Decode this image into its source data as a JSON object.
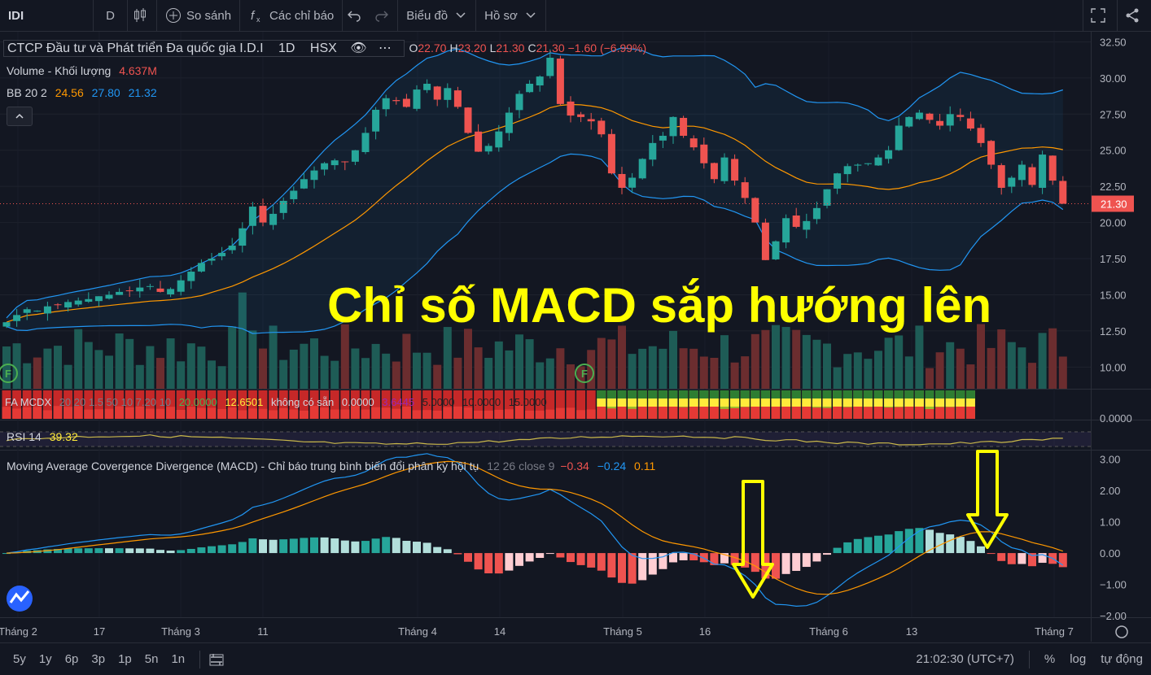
{
  "toolbar": {
    "symbol": "IDI",
    "interval": "D",
    "compare": "So sánh",
    "indicators": "Các chỉ báo",
    "chart_menu": "Biểu đồ",
    "profile_menu": "Hồ sơ"
  },
  "legend": {
    "title": "CTCP Đầu tư và Phát triển Đa quốc gia I.D.I",
    "interval": "1D",
    "exchange": "HSX",
    "ohlc": {
      "o_label": "O",
      "o": "22.70",
      "h_label": "H",
      "h": "23.20",
      "l_label": "L",
      "l": "21.30",
      "c_label": "C",
      "c": "21.30",
      "change": "−1.60 (−6.99%)"
    },
    "volume_label": "Volume - Khối lượng",
    "volume_value": "4.637M",
    "bb_label": "BB 20 2",
    "bb_values": [
      "24.56",
      "27.80",
      "21.32"
    ]
  },
  "fa_legend": {
    "label": "FA MCDX",
    "params": "20 20 1.5 50 10 7.20 10",
    "v1": "20.0000",
    "v2": "12.6501",
    "v3": "không có sẵn",
    "v4": "0.0000",
    "v5": "3.6445",
    "v6": "5.0000",
    "v7": "10.0000",
    "v8": "15.0000"
  },
  "rsi_legend": {
    "label": "RSI 14",
    "value": "39.32"
  },
  "macd_legend": {
    "label": "Moving Average Covergence Divergence (MACD) - Chỉ báo trung bình biến đổi phân kỳ hội tụ",
    "params": "12 26 close 9",
    "hist": "−0.34",
    "macd": "−0.24",
    "signal": "0.11"
  },
  "annotation": "Chỉ số MACD sắp hướng lên",
  "last_price": "21.30",
  "fa_axis_label": "0.0000",
  "price_axis": [
    "32.50",
    "30.00",
    "27.50",
    "25.00",
    "22.50",
    "20.00",
    "17.50",
    "15.00",
    "12.50",
    "10.00"
  ],
  "macd_axis": [
    "3.00",
    "2.00",
    "1.00",
    "0.00",
    "−1.00",
    "−2.00"
  ],
  "time_axis": [
    "Tháng 2",
    "17",
    "Tháng 3",
    "11",
    "Tháng 4",
    "14",
    "Tháng 5",
    "16",
    "Tháng 6",
    "13",
    "Tháng 7"
  ],
  "bottom": {
    "ranges": [
      "5y",
      "1y",
      "6p",
      "3p",
      "1p",
      "5n",
      "1n"
    ],
    "time": "21:02:30 (UTC+7)",
    "percent": "%",
    "log": "log",
    "auto": "tự động"
  },
  "colors": {
    "up": "#26a69a",
    "down": "#ef5350",
    "bb_basis": "#ff9800",
    "bb_band": "#2196f3",
    "annotation": "#ffff00",
    "rsi": "#c9b84a"
  },
  "chart_data": {
    "type": "candlestick",
    "title": "CTCP Đầu tư và Phát triển Đa quốc gia I.D.I",
    "ylim": [
      8.5,
      33.2
    ],
    "x_labels": [
      "Tháng 2",
      "17",
      "Tháng 3",
      "11",
      "Tháng 4",
      "14",
      "Tháng 5",
      "16",
      "Tháng 6",
      "13",
      "Tháng 7"
    ],
    "closes": [
      13.1,
      13.6,
      14.0,
      13.9,
      14.2,
      14.3,
      14.5,
      14.6,
      14.7,
      14.9,
      15.0,
      15.2,
      15.3,
      15.5,
      15.6,
      15.2,
      15.4,
      16.0,
      16.6,
      17.2,
      17.5,
      17.9,
      18.4,
      19.6,
      21.1,
      20.0,
      20.6,
      21.5,
      22.2,
      23.0,
      23.6,
      24.1,
      24.3,
      24.2,
      25.0,
      26.2,
      27.8,
      28.6,
      28.4,
      28.0,
      29.2,
      29.6,
      28.5,
      29.3,
      28.0,
      26.2,
      24.9,
      25.3,
      26.3,
      27.6,
      28.9,
      29.6,
      30.1,
      31.4,
      28.2,
      27.4,
      27.3,
      27.0,
      26.1,
      23.4,
      22.4,
      23.1,
      24.4,
      25.5,
      26.0,
      27.3,
      26.0,
      25.2,
      24.1,
      23.0,
      24.5,
      22.9,
      21.7,
      20.0,
      17.4,
      18.7,
      20.3,
      19.7,
      20.1,
      21.0,
      22.3,
      23.4,
      23.9,
      24.0,
      24.1,
      24.5,
      25.0,
      26.7,
      27.3,
      27.6,
      27.1,
      26.7,
      27.5,
      27.3,
      26.5,
      25.5,
      24.0,
      22.4,
      23.1,
      24.0,
      22.6,
      24.7,
      22.9,
      21.3
    ],
    "bb_upper_last": 27.8,
    "bb_basis_last": 24.56,
    "bb_lower_last": 21.32,
    "volume_last": "4.637M",
    "macd": {
      "hist_last": -0.34,
      "macd_last": -0.24,
      "signal_last": 0.11,
      "ylim": [
        -2.0,
        3.2
      ]
    },
    "rsi_last": 39.32
  }
}
